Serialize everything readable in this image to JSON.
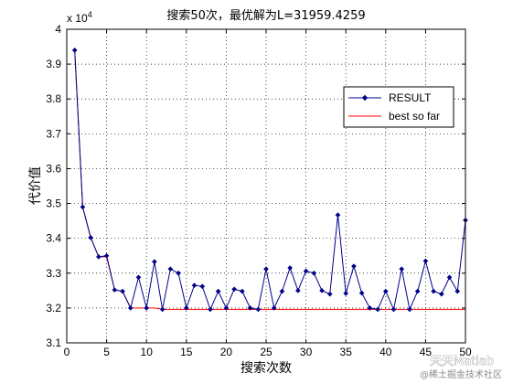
{
  "chart_data": {
    "type": "line",
    "title": "搜索50次，最优解为L=31959.4259",
    "xlabel": "搜索次数",
    "ylabel": "代价值",
    "exponent_label": "x 10",
    "exponent_power": "4",
    "xlim": [
      0,
      50
    ],
    "ylim": [
      3.1,
      4.0
    ],
    "y_display_scale": 10000,
    "xticks": [
      0,
      5,
      10,
      15,
      20,
      25,
      30,
      35,
      40,
      45,
      50
    ],
    "yticks": [
      3.1,
      3.2,
      3.3,
      3.4,
      3.5,
      3.6,
      3.7,
      3.8,
      3.9,
      4.0
    ],
    "yticklabels": [
      "3.1",
      "3.2",
      "3.3",
      "3.4",
      "3.5",
      "3.6",
      "3.7",
      "3.8",
      "3.9",
      "4"
    ],
    "grid": true,
    "legend_position": "top-right",
    "x": [
      1,
      2,
      3,
      4,
      5,
      6,
      7,
      8,
      9,
      10,
      11,
      12,
      13,
      14,
      15,
      16,
      17,
      18,
      19,
      20,
      21,
      22,
      23,
      24,
      25,
      26,
      27,
      28,
      29,
      30,
      31,
      32,
      33,
      34,
      35,
      36,
      37,
      38,
      39,
      40,
      41,
      42,
      43,
      44,
      45,
      46,
      47,
      48,
      49,
      50
    ],
    "series": [
      {
        "name": "RESULT",
        "color": "#00008b",
        "marker": "diamond",
        "values": [
          39400,
          34900,
          34020,
          33470,
          33500,
          32520,
          32480,
          32000,
          32880,
          32000,
          33330,
          31960,
          33120,
          33000,
          32000,
          32650,
          32620,
          31960,
          32480,
          32000,
          32540,
          32480,
          32000,
          31960,
          33120,
          32000,
          32480,
          33150,
          32500,
          33060,
          33000,
          32500,
          32400,
          34670,
          32420,
          33200,
          32430,
          32000,
          31960,
          32480,
          31960,
          33120,
          31960,
          32480,
          33350,
          32480,
          32400,
          32880,
          32480,
          34520
        ]
      },
      {
        "name": "best so far",
        "color": "#ff0000",
        "marker": "none",
        "values": [
          39400,
          34900,
          34020,
          33470,
          33470,
          32520,
          32480,
          32000,
          32000,
          32000,
          32000,
          31960,
          31960,
          31960,
          31960,
          31960,
          31960,
          31960,
          31960,
          31960,
          31960,
          31960,
          31960,
          31960,
          31960,
          31960,
          31960,
          31960,
          31960,
          31960,
          31960,
          31960,
          31960,
          31960,
          31960,
          31960,
          31960,
          31960,
          31960,
          31960,
          31960,
          31960,
          31960,
          31960,
          31960,
          31960,
          31960,
          31960,
          31960,
          31960
        ]
      }
    ]
  },
  "watermark": {
    "main": "天天Matlab",
    "sub": "@稀土掘金技术社区"
  }
}
